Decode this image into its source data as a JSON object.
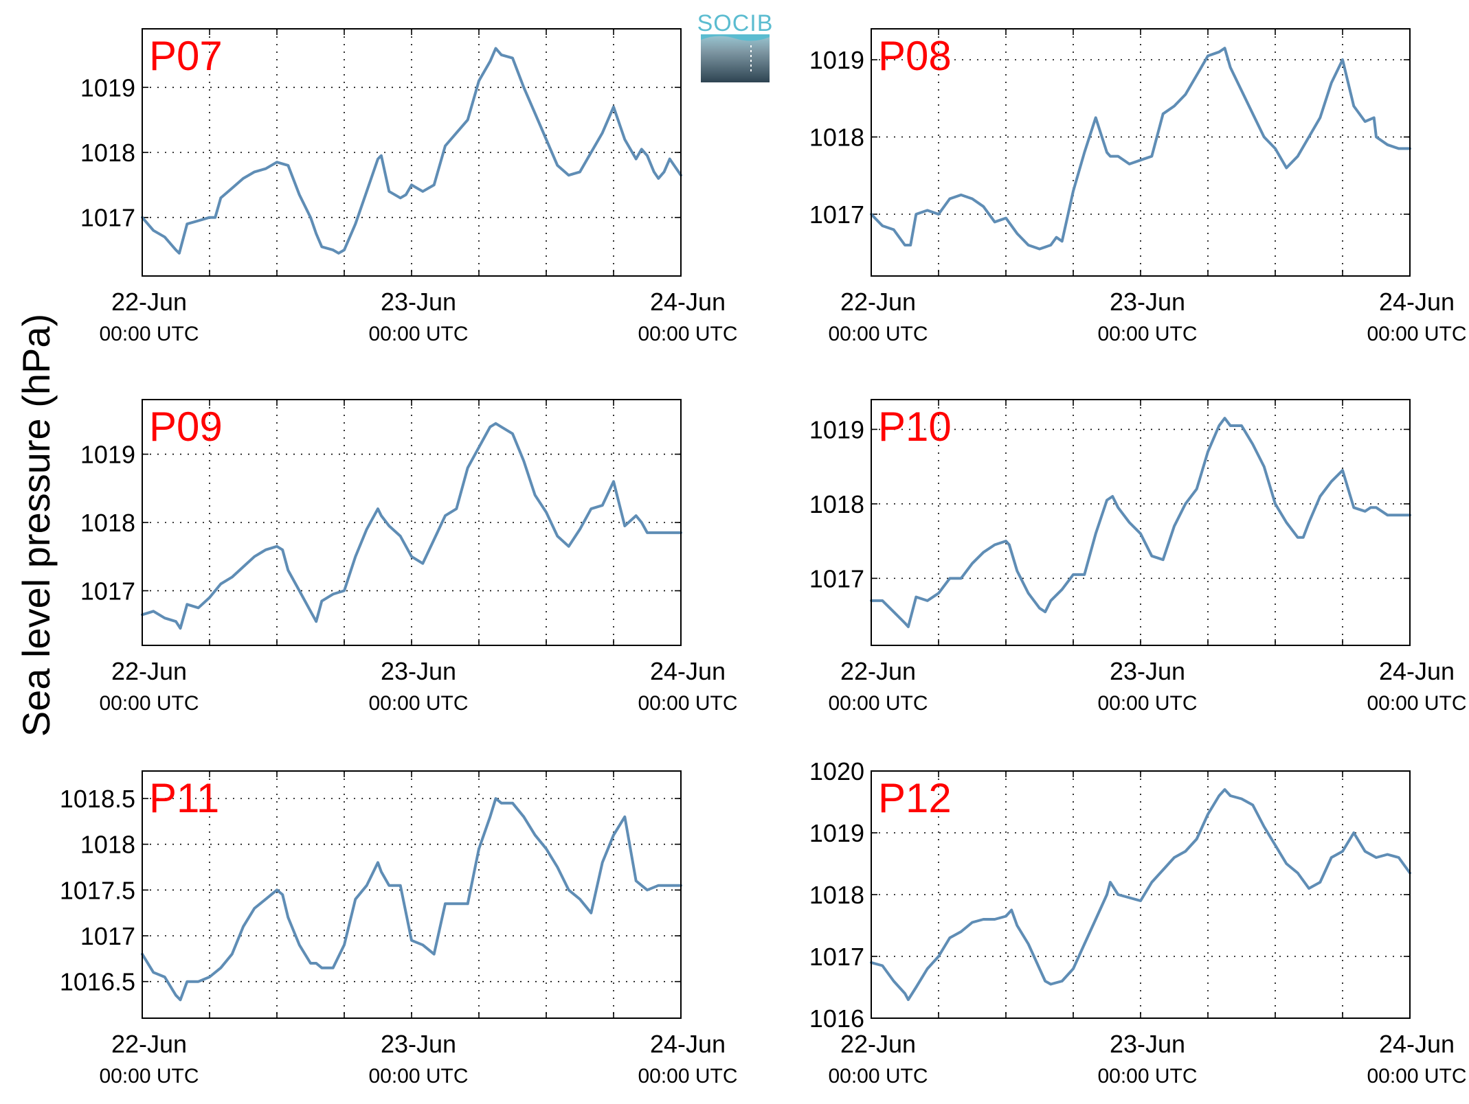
{
  "ylabel": "Sea level pressure (hPa)",
  "logo_text": "SOCIB",
  "colors": {
    "line": "#5f8db5",
    "title": "#ff0000",
    "logo": "#5bbcd0"
  },
  "chart_data": [
    {
      "type": "line",
      "title": "P07",
      "x_ticks": [
        {
          "x": 0,
          "label": "22-Jun",
          "sub": "00:00 UTC"
        },
        {
          "x": 24,
          "label": "23-Jun",
          "sub": "00:00 UTC"
        },
        {
          "x": 48,
          "label": "24-Jun",
          "sub": "00:00 UTC"
        }
      ],
      "xlim": [
        0,
        48
      ],
      "ylim": [
        1016.1,
        1019.9
      ],
      "y_ticks": [
        1017,
        1018,
        1019
      ],
      "grid": true,
      "series": [
        {
          "x": [
            0,
            1,
            2,
            3,
            3.3,
            4,
            5,
            6,
            6.5,
            7,
            8,
            9,
            10,
            11,
            12,
            13,
            14,
            15,
            15.5,
            16,
            17,
            17.5,
            18,
            19,
            20,
            21,
            21.3,
            22,
            23,
            23.5,
            24,
            25,
            26,
            27,
            28,
            29,
            30,
            31,
            31.5,
            32,
            33,
            34,
            35,
            36,
            37,
            38,
            39,
            40,
            41,
            42,
            43,
            44,
            44.5,
            45,
            45.6,
            46,
            46.5,
            47,
            48
          ],
          "y": [
            1017.0,
            1016.8,
            1016.7,
            1016.5,
            1016.45,
            1016.9,
            1016.95,
            1017.0,
            1017.0,
            1017.3,
            1017.45,
            1017.6,
            1017.7,
            1017.75,
            1017.85,
            1017.8,
            1017.35,
            1017.0,
            1016.75,
            1016.55,
            1016.5,
            1016.45,
            1016.5,
            1016.9,
            1017.4,
            1017.9,
            1017.95,
            1017.4,
            1017.3,
            1017.35,
            1017.5,
            1017.4,
            1017.5,
            1018.1,
            1018.3,
            1018.5,
            1019.1,
            1019.4,
            1019.6,
            1019.5,
            1019.45,
            1019.0,
            1018.6,
            1018.2,
            1017.8,
            1017.65,
            1017.7,
            1018.0,
            1018.3,
            1018.7,
            1018.2,
            1017.9,
            1018.05,
            1017.95,
            1017.7,
            1017.6,
            1017.7,
            1017.9,
            1017.65
          ]
        }
      ]
    },
    {
      "type": "line",
      "title": "P08",
      "x_ticks": [
        {
          "x": 0,
          "label": "22-Jun",
          "sub": "00:00 UTC"
        },
        {
          "x": 24,
          "label": "23-Jun",
          "sub": "00:00 UTC"
        },
        {
          "x": 48,
          "label": "24-Jun",
          "sub": "00:00 UTC"
        }
      ],
      "xlim": [
        0,
        48
      ],
      "ylim": [
        1016.2,
        1019.4
      ],
      "y_ticks": [
        1017,
        1018,
        1019
      ],
      "grid": true,
      "series": [
        {
          "x": [
            0,
            1,
            2,
            3,
            3.5,
            4,
            5,
            6,
            7,
            8,
            9,
            10,
            11,
            12,
            13,
            14,
            15,
            16,
            16.5,
            17,
            18,
            19,
            20,
            21,
            21.3,
            22,
            23,
            24,
            25,
            26,
            27,
            28,
            29,
            30,
            31,
            31.5,
            32,
            33,
            34,
            35,
            36,
            37,
            38,
            39,
            40,
            41,
            42,
            43,
            44,
            44.8,
            45,
            46,
            47,
            48
          ],
          "y": [
            1017.0,
            1016.85,
            1016.8,
            1016.6,
            1016.6,
            1017.0,
            1017.05,
            1017.0,
            1017.2,
            1017.25,
            1017.2,
            1017.1,
            1016.9,
            1016.95,
            1016.75,
            1016.6,
            1016.55,
            1016.6,
            1016.7,
            1016.65,
            1017.3,
            1017.8,
            1018.25,
            1017.8,
            1017.75,
            1017.75,
            1017.65,
            1017.7,
            1017.75,
            1018.3,
            1018.4,
            1018.55,
            1018.8,
            1019.05,
            1019.1,
            1019.15,
            1018.9,
            1018.6,
            1018.3,
            1018.0,
            1017.85,
            1017.6,
            1017.75,
            1018.0,
            1018.25,
            1018.7,
            1019.0,
            1018.4,
            1018.2,
            1018.25,
            1018.0,
            1017.9,
            1017.85,
            1017.85
          ]
        }
      ]
    },
    {
      "type": "line",
      "title": "P09",
      "x_ticks": [
        {
          "x": 0,
          "label": "22-Jun",
          "sub": "00:00 UTC"
        },
        {
          "x": 24,
          "label": "23-Jun",
          "sub": "00:00 UTC"
        },
        {
          "x": 48,
          "label": "24-Jun",
          "sub": "00:00 UTC"
        }
      ],
      "xlim": [
        0,
        48
      ],
      "ylim": [
        1016.2,
        1019.8
      ],
      "y_ticks": [
        1017,
        1018,
        1019
      ],
      "grid": true,
      "series": [
        {
          "x": [
            0,
            1,
            2,
            3,
            3.4,
            4,
            5,
            6,
            7,
            8,
            9,
            10,
            11,
            12,
            12.5,
            13,
            14,
            15,
            15.5,
            16,
            17,
            18,
            19,
            20,
            21,
            21.3,
            22,
            23,
            24,
            25,
            26,
            27,
            28,
            29,
            30,
            31,
            31.5,
            32,
            33,
            34,
            35,
            36,
            37,
            38,
            39,
            40,
            41,
            42,
            43,
            44,
            44.5,
            45,
            46,
            47,
            48
          ],
          "y": [
            1016.65,
            1016.7,
            1016.6,
            1016.55,
            1016.45,
            1016.8,
            1016.75,
            1016.9,
            1017.1,
            1017.2,
            1017.35,
            1017.5,
            1017.6,
            1017.65,
            1017.6,
            1017.3,
            1017.0,
            1016.7,
            1016.55,
            1016.85,
            1016.95,
            1017.0,
            1017.5,
            1017.9,
            1018.2,
            1018.1,
            1017.95,
            1017.8,
            1017.5,
            1017.4,
            1017.75,
            1018.1,
            1018.2,
            1018.8,
            1019.1,
            1019.4,
            1019.45,
            1019.4,
            1019.3,
            1018.9,
            1018.4,
            1018.15,
            1017.8,
            1017.65,
            1017.9,
            1018.2,
            1018.25,
            1018.6,
            1017.95,
            1018.1,
            1018.0,
            1017.85,
            1017.85,
            1017.85,
            1017.85
          ]
        }
      ]
    },
    {
      "type": "line",
      "title": "P10",
      "x_ticks": [
        {
          "x": 0,
          "label": "22-Jun",
          "sub": "00:00 UTC"
        },
        {
          "x": 24,
          "label": "23-Jun",
          "sub": "00:00 UTC"
        },
        {
          "x": 48,
          "label": "24-Jun",
          "sub": "00:00 UTC"
        }
      ],
      "xlim": [
        0,
        48
      ],
      "ylim": [
        1016.1,
        1019.4
      ],
      "y_ticks": [
        1017,
        1018,
        1019
      ],
      "grid": true,
      "series": [
        {
          "x": [
            0,
            1,
            2,
            3,
            3.3,
            4,
            5,
            6,
            7,
            8,
            9,
            10,
            11,
            12,
            12.3,
            13,
            14,
            15,
            15.5,
            16,
            17,
            18,
            19,
            20,
            21,
            21.5,
            22,
            23,
            24,
            25,
            26,
            27,
            28,
            29,
            30,
            31,
            31.5,
            32,
            33,
            34,
            35,
            36,
            37,
            38,
            38.5,
            39,
            40,
            41,
            42,
            43,
            44,
            44.5,
            45,
            46,
            47,
            48
          ],
          "y": [
            1016.7,
            1016.7,
            1016.55,
            1016.4,
            1016.35,
            1016.75,
            1016.7,
            1016.8,
            1017.0,
            1017.0,
            1017.2,
            1017.35,
            1017.45,
            1017.5,
            1017.45,
            1017.1,
            1016.8,
            1016.6,
            1016.55,
            1016.7,
            1016.85,
            1017.05,
            1017.05,
            1017.6,
            1018.05,
            1018.1,
            1017.95,
            1017.75,
            1017.6,
            1017.3,
            1017.25,
            1017.7,
            1018.0,
            1018.2,
            1018.7,
            1019.05,
            1019.15,
            1019.05,
            1019.05,
            1018.8,
            1018.5,
            1018.0,
            1017.75,
            1017.55,
            1017.55,
            1017.75,
            1018.1,
            1018.3,
            1018.45,
            1017.95,
            1017.9,
            1017.95,
            1017.95,
            1017.85,
            1017.85,
            1017.85
          ]
        }
      ]
    },
    {
      "type": "line",
      "title": "P11",
      "x_ticks": [
        {
          "x": 0,
          "label": "22-Jun",
          "sub": "00:00 UTC"
        },
        {
          "x": 24,
          "label": "23-Jun",
          "sub": "00:00 UTC"
        },
        {
          "x": 48,
          "label": "24-Jun",
          "sub": "00:00 UTC"
        }
      ],
      "xlim": [
        0,
        48
      ],
      "ylim": [
        1016.1,
        1018.8
      ],
      "y_ticks": [
        1016.5,
        1017,
        1017.5,
        1018,
        1018.5
      ],
      "grid": true,
      "series": [
        {
          "x": [
            0,
            1,
            2,
            3,
            3.4,
            4,
            5,
            6,
            7,
            8,
            9,
            10,
            11,
            12,
            12.5,
            13,
            14,
            15,
            15.5,
            16,
            17,
            18,
            19,
            20,
            21,
            21.3,
            22,
            23,
            24,
            25,
            26,
            27,
            28,
            29,
            30,
            31,
            31.5,
            32,
            33,
            34,
            35,
            36,
            37,
            38,
            39,
            40,
            41,
            42,
            43,
            44,
            44.5,
            45,
            46,
            47,
            48
          ],
          "y": [
            1016.8,
            1016.6,
            1016.55,
            1016.35,
            1016.3,
            1016.5,
            1016.5,
            1016.55,
            1016.65,
            1016.8,
            1017.1,
            1017.3,
            1017.4,
            1017.5,
            1017.45,
            1017.2,
            1016.9,
            1016.7,
            1016.7,
            1016.65,
            1016.65,
            1016.9,
            1017.4,
            1017.55,
            1017.8,
            1017.7,
            1017.55,
            1017.55,
            1016.95,
            1016.9,
            1016.8,
            1017.35,
            1017.35,
            1017.35,
            1017.95,
            1018.3,
            1018.5,
            1018.45,
            1018.45,
            1018.3,
            1018.1,
            1017.95,
            1017.75,
            1017.5,
            1017.4,
            1017.25,
            1017.8,
            1018.1,
            1018.3,
            1017.6,
            1017.55,
            1017.5,
            1017.55,
            1017.55,
            1017.55
          ]
        }
      ]
    },
    {
      "type": "line",
      "title": "P12",
      "x_ticks": [
        {
          "x": 0,
          "label": "22-Jun",
          "sub": "00:00 UTC"
        },
        {
          "x": 24,
          "label": "23-Jun",
          "sub": "00:00 UTC"
        },
        {
          "x": 48,
          "label": "24-Jun",
          "sub": "00:00 UTC"
        }
      ],
      "xlim": [
        0,
        48
      ],
      "ylim": [
        1016.0,
        1020.0
      ],
      "y_ticks": [
        1016,
        1017,
        1018,
        1019,
        1020
      ],
      "grid": true,
      "series": [
        {
          "x": [
            0,
            1,
            2,
            3,
            3.3,
            4,
            5,
            6,
            7,
            8,
            9,
            10,
            11,
            12,
            12.5,
            13,
            14,
            15,
            15.5,
            16,
            17,
            18,
            19,
            20,
            21,
            21.3,
            22,
            23,
            24,
            25,
            26,
            27,
            28,
            29,
            30,
            31,
            31.5,
            32,
            33,
            34,
            35,
            36,
            37,
            38,
            39,
            40,
            41,
            42,
            43,
            44,
            45,
            46,
            47,
            48
          ],
          "y": [
            1016.9,
            1016.85,
            1016.6,
            1016.4,
            1016.3,
            1016.5,
            1016.8,
            1017.0,
            1017.3,
            1017.4,
            1017.55,
            1017.6,
            1017.6,
            1017.65,
            1017.75,
            1017.5,
            1017.2,
            1016.8,
            1016.6,
            1016.55,
            1016.6,
            1016.8,
            1017.2,
            1017.6,
            1018.0,
            1018.2,
            1018.0,
            1017.95,
            1017.9,
            1018.2,
            1018.4,
            1018.6,
            1018.7,
            1018.9,
            1019.3,
            1019.6,
            1019.7,
            1019.6,
            1019.55,
            1019.45,
            1019.1,
            1018.8,
            1018.5,
            1018.35,
            1018.1,
            1018.2,
            1018.6,
            1018.7,
            1019.0,
            1018.7,
            1018.6,
            1018.65,
            1018.6,
            1018.35
          ]
        }
      ]
    }
  ]
}
